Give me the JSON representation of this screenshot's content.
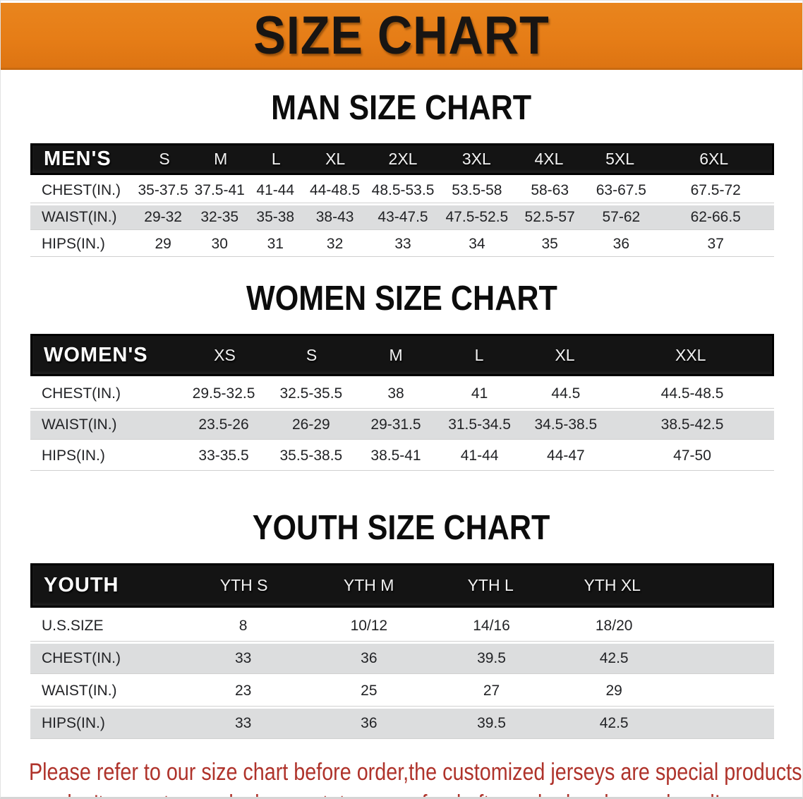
{
  "banner": {
    "title": "SIZE CHART",
    "bg_color": "#e67d17",
    "text_color": "#181513"
  },
  "sections": [
    {
      "title": "MAN SIZE CHART",
      "header_label": "MEN'S",
      "columns": [
        "S",
        "M",
        "L",
        "XL",
        "2XL",
        "3XL",
        "4XL",
        "5XL",
        "6XL"
      ],
      "rows": [
        {
          "label": "CHEST(IN.)",
          "values": [
            "35-37.5",
            "37.5-41",
            "41-44",
            "44-48.5",
            "48.5-53.5",
            "53.5-58",
            "58-63",
            "63-67.5",
            "67.5-72"
          ]
        },
        {
          "label": "WAIST(IN.)",
          "values": [
            "29-32",
            "32-35",
            "35-38",
            "38-43",
            "43-47.5",
            "47.5-52.5",
            "52.5-57",
            "57-62",
            "62-66.5"
          ]
        },
        {
          "label": "HIPS(IN.)",
          "values": [
            "29",
            "30",
            "31",
            "32",
            "33",
            "34",
            "35",
            "36",
            "37"
          ]
        }
      ]
    },
    {
      "title": "WOMEN SIZE CHART",
      "header_label": "WOMEN'S",
      "columns": [
        "XS",
        "S",
        "M",
        "L",
        "XL",
        "XXL"
      ],
      "rows": [
        {
          "label": "CHEST(IN.)",
          "values": [
            "29.5-32.5",
            "32.5-35.5",
            "38",
            "41",
            "44.5",
            "44.5-48.5"
          ]
        },
        {
          "label": "WAIST(IN.)",
          "values": [
            "23.5-26",
            "26-29",
            "29-31.5",
            "31.5-34.5",
            "34.5-38.5",
            "38.5-42.5"
          ]
        },
        {
          "label": "HIPS(IN.)",
          "values": [
            "33-35.5",
            "35.5-38.5",
            "38.5-41",
            "41-44",
            "44-47",
            "47-50"
          ]
        }
      ]
    },
    {
      "title": "YOUTH SIZE CHART",
      "header_label": "YOUTH",
      "columns": [
        "YTH S",
        "YTH M",
        "YTH L",
        "YTH XL"
      ],
      "rows": [
        {
          "label": "U.S.SIZE",
          "values": [
            "8",
            "10/12",
            "14/16",
            "18/20"
          ]
        },
        {
          "label": "CHEST(IN.)",
          "values": [
            "33",
            "36",
            "39.5",
            "42.5"
          ]
        },
        {
          "label": "WAIST(IN.)",
          "values": [
            "23",
            "25",
            "27",
            "29"
          ]
        },
        {
          "label": "HIPS(IN.)",
          "values": [
            "33",
            "36",
            "39.5",
            "42.5"
          ]
        }
      ]
    }
  ],
  "footer": {
    "line1": "Please refer to our size chart before order,the customized jerseys are special products,",
    "line2": "we don't accept cancel, change, teturn or refund after order has been placed!",
    "text_color": "#af332b"
  }
}
